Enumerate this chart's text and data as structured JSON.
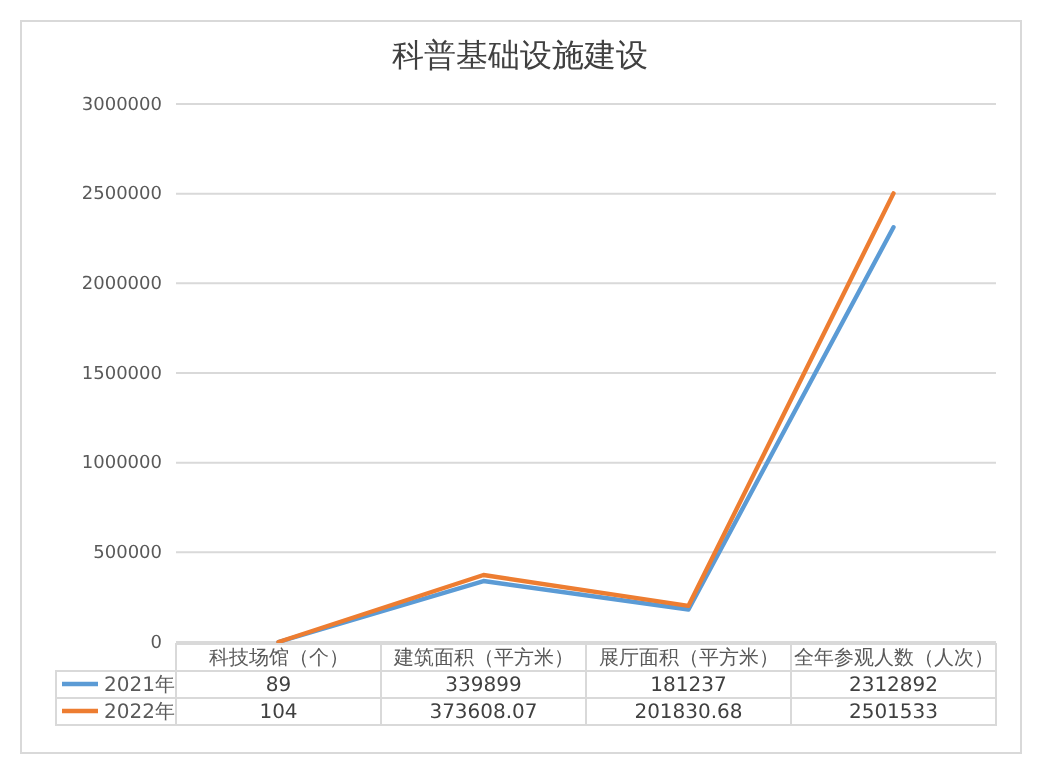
{
  "chart_data": {
    "type": "line",
    "title": "科普基础设施建设",
    "categories": [
      "科技场馆（个）",
      "建筑面积（平方米）",
      "展厅面积（平方米）",
      "全年参观人数（人次）"
    ],
    "series": [
      {
        "name": "2021年",
        "color": "#5b9bd5",
        "values": [
          89,
          339899,
          181237,
          2312892
        ]
      },
      {
        "name": "2022年",
        "color": "#ed7d31",
        "values": [
          104,
          373608.07,
          201830.68,
          2501533
        ]
      }
    ],
    "ylim": [
      0,
      3000000
    ],
    "yticks": [
      0,
      500000,
      1000000,
      1500000,
      2000000,
      2500000,
      3000000
    ],
    "grid": "y",
    "legend": "bottom",
    "data_labels": true,
    "marker": "none",
    "line_style": "solid"
  }
}
